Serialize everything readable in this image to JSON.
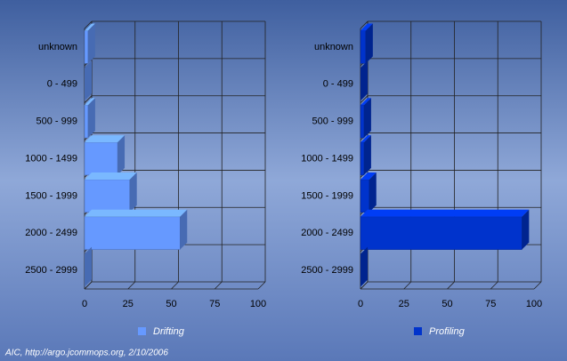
{
  "chart_data": [
    {
      "type": "bar",
      "orientation": "horizontal",
      "categories": [
        "unknown",
        "0 - 499",
        "500 - 999",
        "1000 - 1499",
        "1500 - 1999",
        "2000 - 2499",
        "2500 - 2999"
      ],
      "series": [
        {
          "name": "Drifting",
          "color": "#6699ff",
          "values": [
            2,
            0,
            2,
            19,
            26,
            55,
            0
          ]
        }
      ],
      "xlim": [
        0,
        100
      ],
      "xticks": [
        0,
        25,
        50,
        75,
        100
      ],
      "grid": true
    },
    {
      "type": "bar",
      "orientation": "horizontal",
      "categories": [
        "unknown",
        "0 - 499",
        "500 - 999",
        "1000 - 1499",
        "1500 - 1999",
        "2000 - 2499",
        "2500 - 2999"
      ],
      "series": [
        {
          "name": "Profiling",
          "color": "#0033cc",
          "values": [
            3,
            0,
            2,
            2,
            5,
            93,
            0
          ]
        }
      ],
      "xlim": [
        0,
        100
      ],
      "xticks": [
        0,
        25,
        50,
        75,
        100
      ],
      "grid": true
    }
  ],
  "footer": "AIC, http://argo.jcommops.org, 2/10/2006"
}
